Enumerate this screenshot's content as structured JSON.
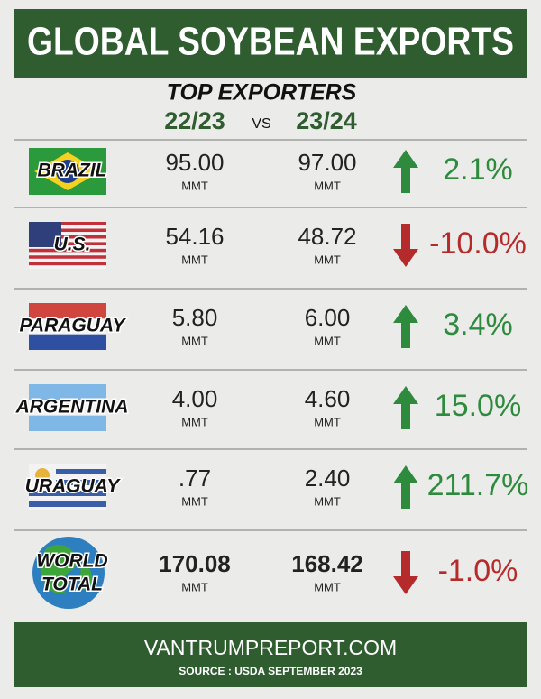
{
  "header": {
    "title": "GLOBAL SOYBEAN EXPORTS",
    "subtitle": "TOP EXPORTERS",
    "period_a": "22/23",
    "vs": "VS",
    "period_b": "23/24"
  },
  "rows": [
    {
      "country": "BRAZIL",
      "a": "95.00",
      "a_unit": "MMT",
      "b": "97.00",
      "b_unit": "MMT",
      "change": "2.1%"
    },
    {
      "country": "U.S.",
      "a": "54.16",
      "a_unit": "MMT",
      "b": "48.72",
      "b_unit": "MMT",
      "change": "-10.0%"
    },
    {
      "country": "PARAGUAY",
      "a": "5.80",
      "a_unit": "MMT",
      "b": "6.00",
      "b_unit": "MMT",
      "change": "3.4%"
    },
    {
      "country": "ARGENTINA",
      "a": "4.00",
      "a_unit": "MMT",
      "b": "4.60",
      "b_unit": "MMT",
      "change": "15.0%"
    },
    {
      "country": "URAGUAY",
      "a": ".77",
      "a_unit": "MMT",
      "b": "2.40",
      "b_unit": "MMT",
      "change": "211.7%"
    },
    {
      "country": "WORLD TOTAL",
      "country_lines": [
        "WORLD",
        "TOTAL"
      ],
      "a": "170.08",
      "a_unit": "MMT",
      "b": "168.42",
      "b_unit": "MMT",
      "change": "-1.0%"
    }
  ],
  "footer": {
    "site": "VANTRUMPREPORT.COM",
    "source": "SOURCE : USDA SEPTEMBER 2023"
  }
}
